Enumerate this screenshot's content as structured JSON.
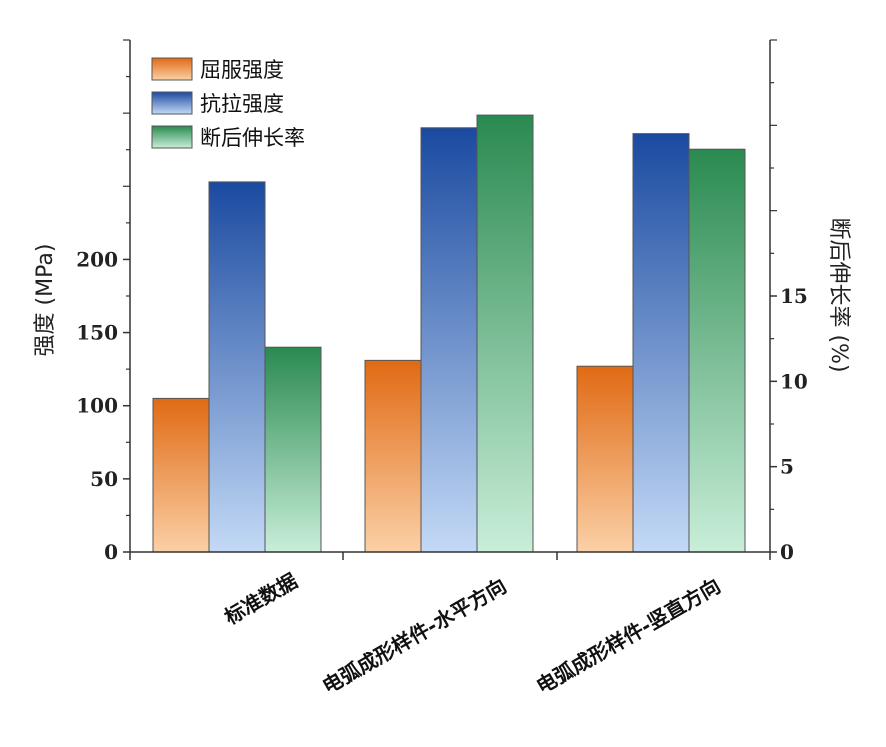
{
  "chart_data": {
    "type": "bar",
    "categories": [
      "标准数据",
      "电弧成形样件-水平方向",
      "电弧成形样件-竖直方向"
    ],
    "series": [
      {
        "name": "屈服强度",
        "axis": "left",
        "values": [
          105,
          131,
          127
        ],
        "color_top": "#e06a14",
        "color_bottom": "#fbd0a6"
      },
      {
        "name": "抗拉强度",
        "axis": "left",
        "values": [
          253,
          290,
          286
        ],
        "color_top": "#1a4aa0",
        "color_bottom": "#c3d9f6"
      },
      {
        "name": "断后伸长率",
        "axis": "right",
        "values": [
          12,
          25.6,
          23.6
        ],
        "color_top": "#2a8a50",
        "color_bottom": "#c9eed9"
      }
    ],
    "ylabel": "强度 (MPa)",
    "y2label": "断后伸长率 (%)",
    "ylim": [
      0,
      350
    ],
    "y2lim": [
      0,
      30
    ],
    "yticks": [
      "0",
      "50",
      "100",
      "150",
      "200"
    ],
    "y2ticks": [
      "0",
      "5",
      "10",
      "15"
    ],
    "ytick_values": [
      0,
      50,
      100,
      150,
      200
    ],
    "y2tick_values": [
      0,
      5,
      10,
      15
    ],
    "legend_position": "top-left",
    "grid": false
  }
}
